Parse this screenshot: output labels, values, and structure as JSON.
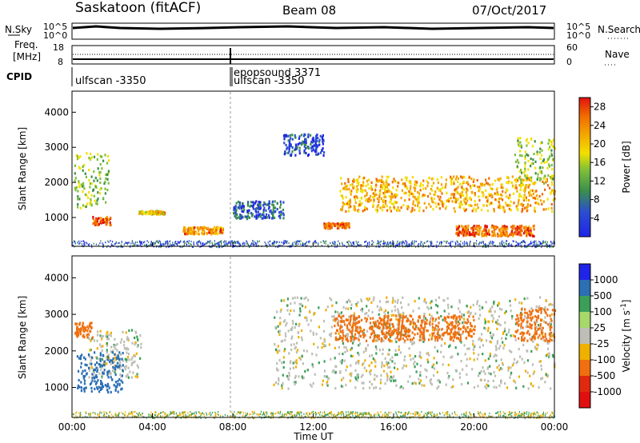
{
  "header": {
    "station": "Saskatoon (fitACF)",
    "beam": "Beam 08",
    "date": "07/Oct/2017"
  },
  "panels": {
    "nsky": {
      "left_label": "N.Sky",
      "right_label": "N.Search",
      "top_tick": "10^5",
      "bottom_tick": "10^0",
      "right_top_tick": "10^5",
      "right_bottom_tick": "10^0"
    },
    "freq": {
      "left_label_line1": "Freq.",
      "left_label_line2": "[MHz]",
      "top_tick": "18",
      "bottom_tick": "8",
      "right_label": "Nave",
      "right_top_tick": "60",
      "right_bottom_tick": "0"
    },
    "cpid": {
      "label": "CPID",
      "entries": [
        "ulfscan -3350",
        "epopsound 3371",
        "ulfscan -3350"
      ]
    }
  },
  "colors": {
    "power_scale": [
      "#1f24e8",
      "#2b4fcf",
      "#3b8f4a",
      "#7fbf3a",
      "#f2e000",
      "#f4a400",
      "#f26a00",
      "#e01010"
    ],
    "velocity_scale": [
      "#1f24e8",
      "#2b6fb4",
      "#3b9f5a",
      "#a6d86a",
      "#bebeb6",
      "#f0b000",
      "#f07010",
      "#e02a10",
      "#e01010"
    ],
    "ground_scatter": "#bebeb6"
  },
  "chart_data": [
    {
      "type": "heatmap",
      "name": "power",
      "title": "",
      "xlabel": "Time UT",
      "ylabel": "Slant Range [km]",
      "xlim": [
        "00:00",
        "24:00"
      ],
      "ylim": [
        180,
        4600
      ],
      "x_ticks": [
        "00:00",
        "04:00",
        "08:00",
        "12:00",
        "16:00",
        "20:00",
        "00:00"
      ],
      "y_ticks": [
        1000,
        2000,
        3000,
        4000
      ],
      "colorbar": {
        "label": "Power [dB]",
        "ticks": [
          "4",
          "8",
          "12",
          "16",
          "20",
          "24",
          "28"
        ],
        "range": [
          0,
          30
        ]
      },
      "features": [
        {
          "t0": 0.1,
          "t1": 1.8,
          "r0": 1300,
          "r1": 2900,
          "value": 14
        },
        {
          "t0": 1.0,
          "t1": 1.9,
          "r0": 820,
          "r1": 1050,
          "value": 26
        },
        {
          "t0": 3.3,
          "t1": 4.6,
          "r0": 1120,
          "r1": 1220,
          "value": 18
        },
        {
          "t0": 5.5,
          "t1": 7.5,
          "r0": 560,
          "r1": 760,
          "value": 22
        },
        {
          "t0": 8.0,
          "t1": 10.5,
          "r0": 1000,
          "r1": 1500,
          "value": 6
        },
        {
          "t0": 10.5,
          "t1": 12.5,
          "r0": 2800,
          "r1": 3400,
          "value": 5
        },
        {
          "t0": 12.5,
          "t1": 13.8,
          "r0": 720,
          "r1": 880,
          "value": 24
        },
        {
          "t0": 13.3,
          "t1": 24.0,
          "r0": 1200,
          "r1": 2200,
          "value": 20
        },
        {
          "t0": 19.0,
          "t1": 23.0,
          "r0": 500,
          "r1": 800,
          "value": 24
        },
        {
          "t0": 22.0,
          "t1": 24.0,
          "r0": 2000,
          "r1": 3300,
          "value": 14
        }
      ]
    },
    {
      "type": "heatmap",
      "name": "velocity",
      "title": "",
      "xlabel": "Time UT",
      "ylabel": "Slant Range [km]",
      "xlim": [
        "00:00",
        "24:00"
      ],
      "ylim": [
        180,
        4600
      ],
      "x_ticks": [
        "00:00",
        "04:00",
        "08:00",
        "12:00",
        "16:00",
        "20:00",
        "00:00"
      ],
      "y_ticks": [
        1000,
        2000,
        3000,
        4000
      ],
      "colorbar": {
        "label": "Velocity [m s^-1]",
        "ticks": [
          "1000",
          "500",
          "100",
          "25",
          "-25",
          "-100",
          "-500",
          "-1000"
        ],
        "range": [
          -1000,
          1000
        ]
      },
      "features": [
        {
          "t0": 0.8,
          "t1": 3.4,
          "r0": 1300,
          "r1": 2600,
          "value": 0
        },
        {
          "t0": 10.0,
          "t1": 24.0,
          "r0": 1000,
          "r1": 3500,
          "value": 0
        },
        {
          "t0": 0.1,
          "t1": 1.0,
          "r0": 2400,
          "r1": 2800,
          "value": -300
        },
        {
          "t0": 13.0,
          "t1": 20.0,
          "r0": 2300,
          "r1": 3000,
          "value": -300
        },
        {
          "t0": 22.0,
          "t1": 24.0,
          "r0": 2300,
          "r1": 3200,
          "value": -300
        },
        {
          "t0": 0.2,
          "t1": 2.5,
          "r0": 900,
          "r1": 2000,
          "value": 150
        }
      ]
    }
  ]
}
